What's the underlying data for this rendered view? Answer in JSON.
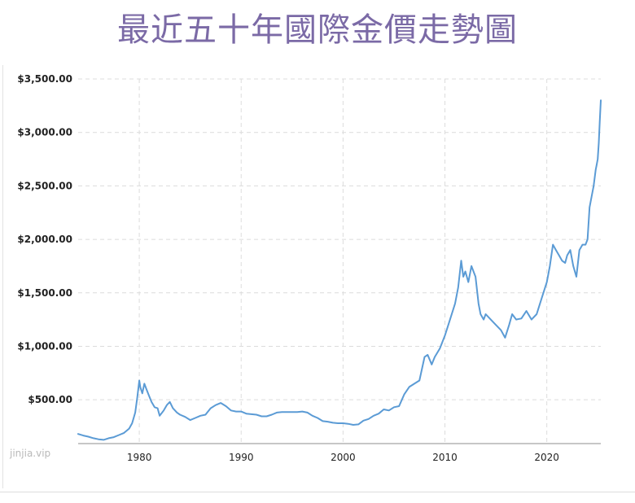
{
  "chart_data": {
    "type": "line",
    "title": "最近五十年國際金價走勢圖",
    "xlabel": "",
    "ylabel": "",
    "xlim": [
      1974.0,
      2025.3
    ],
    "ylim": [
      90,
      3500
    ],
    "grid": true,
    "legend": "none",
    "line_color": "#5b9bd5",
    "title_color": "#7b6aa6",
    "y_ticks": [
      500,
      1000,
      1500,
      2000,
      2500,
      3000,
      3500
    ],
    "y_tick_labels": [
      "$500.00",
      "$1,000.00",
      "$1,500.00",
      "$2,000.00",
      "$2,500.00",
      "$3,000.00",
      "$3,500.00"
    ],
    "x_ticks": [
      1980,
      1990,
      2000,
      2010,
      2020
    ],
    "x_tick_labels": [
      "1980",
      "1990",
      "2000",
      "2010",
      "2020"
    ],
    "series": [
      {
        "x": [
          1974.0,
          1974.5,
          1975.0,
          1975.5,
          1976.0,
          1976.5,
          1977.0,
          1977.5,
          1978.0,
          1978.5,
          1979.0,
          1979.3,
          1979.6,
          1979.8,
          1980.0,
          1980.1,
          1980.3,
          1980.5,
          1980.7,
          1980.9,
          1981.2,
          1981.5,
          1981.8,
          1982.0,
          1982.4,
          1982.7,
          1983.0,
          1983.3,
          1983.7,
          1984.0,
          1984.5,
          1985.0,
          1985.5,
          1986.0,
          1986.5,
          1987.0,
          1987.5,
          1988.0,
          1988.5,
          1989.0,
          1989.5,
          1990.0,
          1990.5,
          1991.0,
          1991.5,
          1992.0,
          1992.5,
          1993.0,
          1993.5,
          1994.0,
          1994.5,
          1995.0,
          1995.5,
          1996.0,
          1996.5,
          1997.0,
          1997.5,
          1998.0,
          1998.5,
          1999.0,
          1999.5,
          2000.0,
          2000.5,
          2001.0,
          2001.5,
          2002.0,
          2002.5,
          2003.0,
          2003.5,
          2004.0,
          2004.5,
          2005.0,
          2005.5,
          2006.0,
          2006.5,
          2007.0,
          2007.5,
          2008.0,
          2008.3,
          2008.7,
          2009.0,
          2009.5,
          2010.0,
          2010.5,
          2011.0,
          2011.3,
          2011.6,
          2011.8,
          2012.0,
          2012.3,
          2012.6,
          2012.8,
          2013.0,
          2013.3,
          2013.5,
          2013.8,
          2014.0,
          2014.5,
          2015.0,
          2015.5,
          2015.9,
          2016.3,
          2016.6,
          2017.0,
          2017.5,
          2018.0,
          2018.5,
          2019.0,
          2019.5,
          2020.0,
          2020.3,
          2020.6,
          2020.9,
          2021.2,
          2021.5,
          2021.8,
          2022.0,
          2022.3,
          2022.6,
          2022.9,
          2023.2,
          2023.5,
          2023.8,
          2024.0,
          2024.2,
          2024.4,
          2024.6,
          2024.8,
          2024.9,
          2025.0,
          2025.1,
          2025.2,
          2025.3
        ],
        "values": [
          180,
          165,
          155,
          140,
          130,
          125,
          140,
          150,
          170,
          190,
          230,
          280,
          380,
          520,
          680,
          620,
          560,
          650,
          600,
          550,
          480,
          430,
          420,
          350,
          400,
          450,
          480,
          420,
          380,
          360,
          340,
          310,
          330,
          350,
          360,
          420,
          450,
          470,
          440,
          400,
          390,
          390,
          370,
          365,
          360,
          345,
          345,
          360,
          380,
          385,
          385,
          385,
          385,
          390,
          380,
          350,
          330,
          300,
          295,
          285,
          280,
          280,
          275,
          265,
          270,
          305,
          320,
          350,
          370,
          410,
          400,
          430,
          440,
          550,
          620,
          650,
          680,
          900,
          920,
          830,
          900,
          980,
          1100,
          1250,
          1400,
          1550,
          1800,
          1650,
          1700,
          1600,
          1750,
          1700,
          1650,
          1400,
          1300,
          1250,
          1300,
          1250,
          1200,
          1150,
          1080,
          1200,
          1300,
          1250,
          1260,
          1330,
          1250,
          1300,
          1450,
          1600,
          1750,
          1950,
          1900,
          1850,
          1800,
          1780,
          1850,
          1900,
          1750,
          1650,
          1900,
          1950,
          1950,
          2000,
          2300,
          2400,
          2500,
          2650,
          2700,
          2750,
          2900,
          3100,
          3300
        ]
      }
    ]
  },
  "watermark": "jinjia.vip"
}
